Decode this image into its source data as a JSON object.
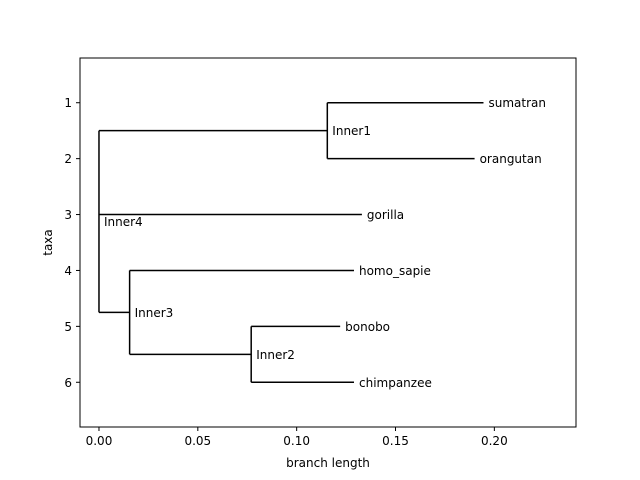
{
  "chart_data": {
    "type": "tree",
    "xlabel": "branch length",
    "ylabel": "taxa",
    "xlim": [
      -0.0096,
      0.2413
    ],
    "ylim": [
      6.8,
      0.2
    ],
    "grid": false,
    "xticks": [
      {
        "value": 0.0,
        "label": "0.00"
      },
      {
        "value": 0.05,
        "label": "0.05"
      },
      {
        "value": 0.1,
        "label": "0.10"
      },
      {
        "value": 0.15,
        "label": "0.15"
      },
      {
        "value": 0.2,
        "label": "0.20"
      }
    ],
    "yticks": [
      {
        "value": 1,
        "label": "1"
      },
      {
        "value": 2,
        "label": "2"
      },
      {
        "value": 3,
        "label": "3"
      },
      {
        "value": 4,
        "label": "4"
      },
      {
        "value": 5,
        "label": "5"
      },
      {
        "value": 6,
        "label": "6"
      }
    ],
    "nodes": [
      {
        "id": "inner4",
        "label": "Inner4",
        "x": 0.0,
        "y": 3.125
      },
      {
        "id": "inner1",
        "label": "Inner1",
        "x": 0.1155,
        "y": 1.5,
        "parent": "inner4"
      },
      {
        "id": "inner3",
        "label": "Inner3",
        "x": 0.0155,
        "y": 4.75,
        "parent": "inner4"
      },
      {
        "id": "inner2",
        "label": "Inner2",
        "x": 0.077,
        "y": 5.5,
        "parent": "inner3"
      },
      {
        "id": "sumatran",
        "label": "sumatran",
        "x": 0.1945,
        "y": 1,
        "parent": "inner1"
      },
      {
        "id": "orangutan",
        "label": "orangutan",
        "x": 0.19,
        "y": 2,
        "parent": "inner1"
      },
      {
        "id": "gorilla",
        "label": "gorilla",
        "x": 0.133,
        "y": 3,
        "parent": "inner4"
      },
      {
        "id": "homo_sapie",
        "label": "homo_sapie",
        "x": 0.129,
        "y": 4,
        "parent": "inner3"
      },
      {
        "id": "bonobo",
        "label": "bonobo",
        "x": 0.122,
        "y": 5,
        "parent": "inner2"
      },
      {
        "id": "chimpanzee",
        "label": "chimpanzee",
        "x": 0.129,
        "y": 6,
        "parent": "inner2"
      }
    ]
  },
  "colors": {
    "line": "#000000",
    "text": "#000000",
    "frame": "#000000",
    "background": "#ffffff"
  }
}
